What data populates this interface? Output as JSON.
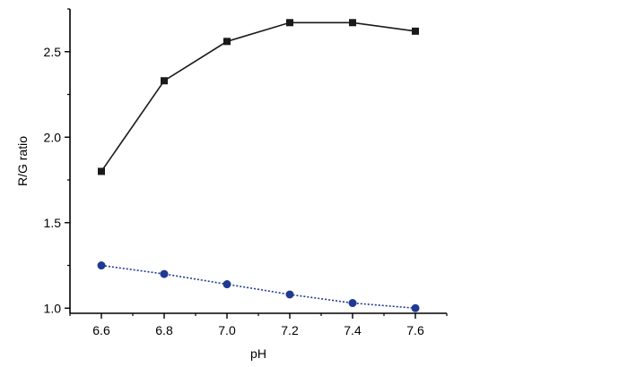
{
  "chart_data": {
    "type": "line",
    "xlabel": "pH",
    "ylabel": "R/G ratio",
    "xlim": [
      6.5,
      7.7
    ],
    "ylim": [
      0.97,
      2.75
    ],
    "xticks": [
      "6.6",
      "6.8",
      "7.0",
      "7.2",
      "7.4",
      "7.6"
    ],
    "yticks": [
      "1.0",
      "1.5",
      "2.0",
      "2.5"
    ],
    "x": [
      6.6,
      6.8,
      7.0,
      7.2,
      7.4,
      7.6
    ],
    "series": [
      {
        "values": [
          1.8,
          2.33,
          2.56,
          2.67,
          2.67,
          2.62
        ],
        "color": "#1a1a1a",
        "marker": "square",
        "line_style": "solid"
      },
      {
        "values": [
          1.25,
          1.2,
          1.14,
          1.08,
          1.03,
          1.0
        ],
        "color": "#1f3a93",
        "marker": "circle",
        "line_style": "dotted"
      }
    ],
    "grid": false,
    "legend": "none"
  }
}
